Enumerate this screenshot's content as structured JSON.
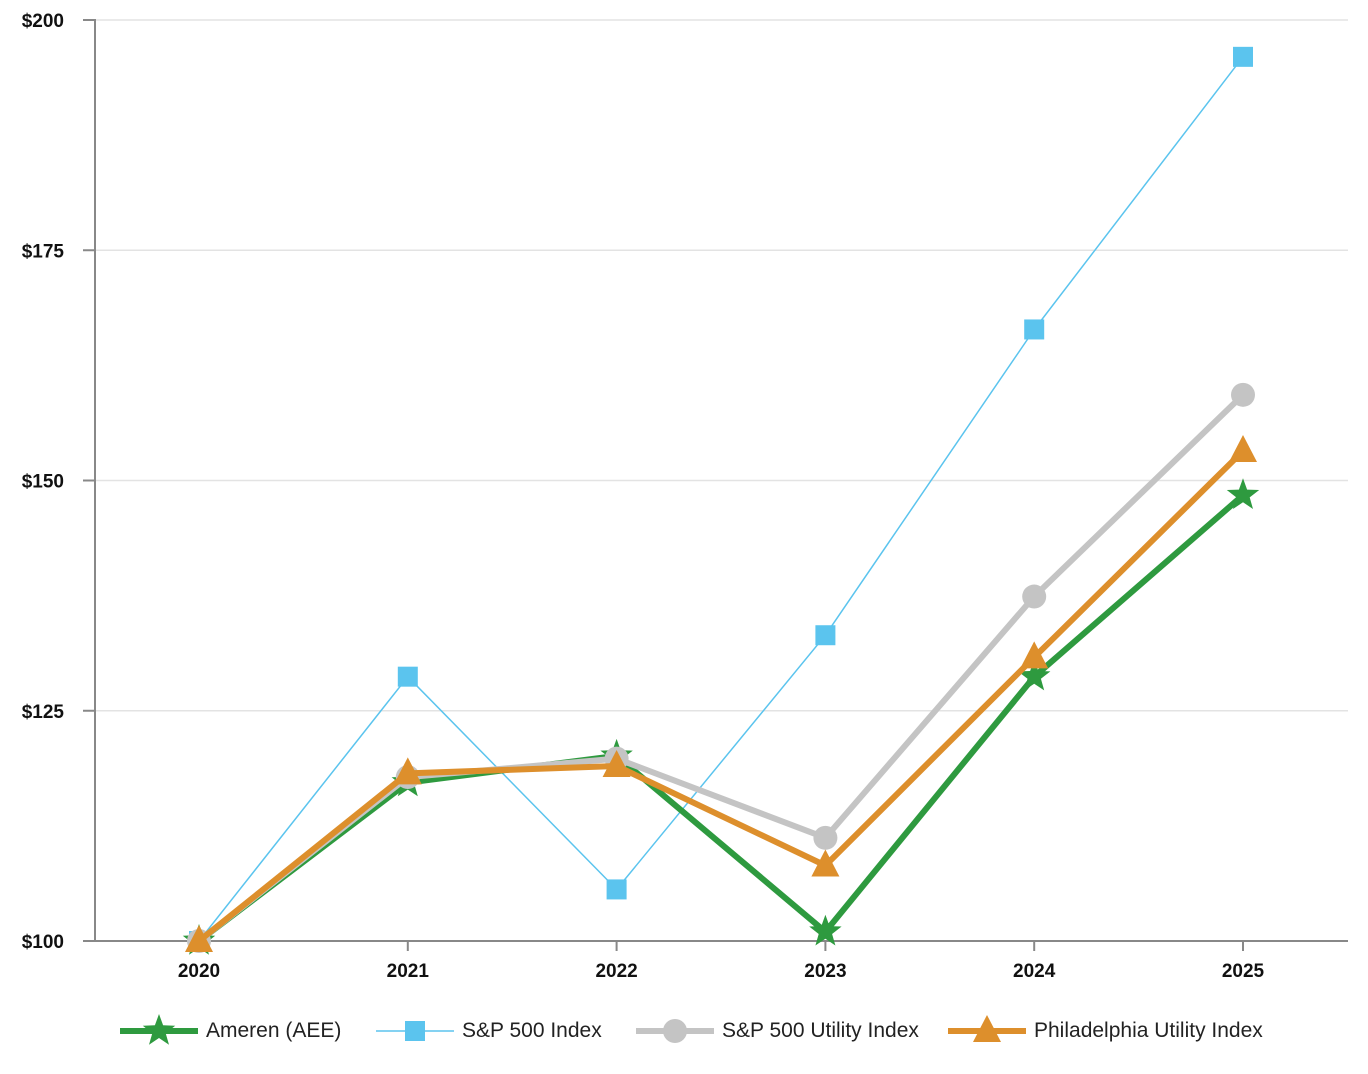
{
  "chart_data": {
    "type": "line",
    "x": [
      "2020",
      "2021",
      "2022",
      "2023",
      "2024",
      "2025"
    ],
    "ylim": [
      100,
      200
    ],
    "y_ticks": [
      "$100",
      "$125",
      "$150",
      "$175",
      "$200"
    ],
    "y_tick_values": [
      100,
      125,
      150,
      175,
      200
    ],
    "grid": true,
    "legend_position": "bottom",
    "series": [
      {
        "name": "Ameren (AEE)",
        "values": [
          100,
          117.2,
          120.1,
          101.0,
          128.7,
          148.4
        ],
        "color": "#2e9a3f",
        "marker": "star"
      },
      {
        "name": "S&P 500 Index",
        "values": [
          100,
          128.7,
          105.6,
          133.2,
          166.4,
          196.0
        ],
        "color": "#5bc4ee",
        "marker": "square"
      },
      {
        "name": "S&P 500 Utility Index",
        "values": [
          100,
          117.8,
          119.8,
          111.2,
          137.4,
          159.3
        ],
        "color": "#c4c4c4",
        "marker": "circle"
      },
      {
        "name": "Philadelphia Utility Index",
        "values": [
          100,
          118.2,
          119.0,
          108.2,
          130.8,
          153.2
        ],
        "color": "#dd8f2c",
        "marker": "triangle"
      }
    ]
  }
}
